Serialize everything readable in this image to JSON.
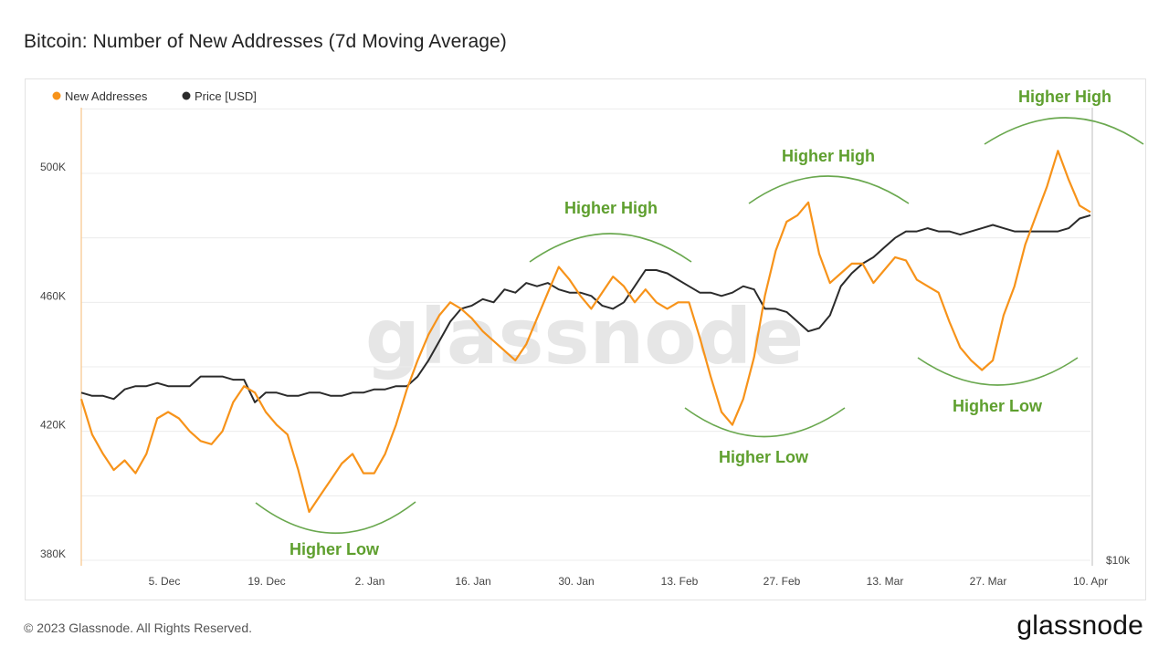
{
  "title": "Bitcoin: Number of New Addresses (7d Moving Average)",
  "footer": "© 2023 Glassnode. All Rights Reserved.",
  "brand": "glassnode",
  "watermark": "glassnode",
  "colors": {
    "new_addresses": "#f7931a",
    "price": "#2b2b2b",
    "annotation": "#5e9f2e",
    "grid": "#ececec"
  },
  "chart_data": {
    "type": "line",
    "title": "Bitcoin: Number of New Addresses (7d Moving Average)",
    "legend": [
      "New Addresses",
      "Price [USD]"
    ],
    "legend_placement": "top-left",
    "x_ticks": [
      "5. Dec",
      "19. Dec",
      "2. Jan",
      "16. Jan",
      "30. Jan",
      "13. Feb",
      "27. Feb",
      "13. Mar",
      "27. Mar",
      "10. Apr"
    ],
    "y_ticks": [
      "380K",
      "420K",
      "460K",
      "500K"
    ],
    "y2_ticks": [
      "$10k"
    ],
    "ylim": [
      380000,
      510000
    ],
    "grid": true,
    "series": [
      {
        "name": "New Addresses",
        "color": "#f7931a",
        "values": [
          430000,
          419000,
          413000,
          408000,
          411000,
          407000,
          413000,
          424000,
          426000,
          424000,
          420000,
          417000,
          416000,
          420000,
          429000,
          434000,
          432000,
          426000,
          422000,
          419000,
          408000,
          395000,
          400000,
          405000,
          410000,
          413000,
          407000,
          407000,
          413000,
          422000,
          433000,
          442000,
          450000,
          456000,
          460000,
          458000,
          455000,
          451000,
          448000,
          445000,
          442000,
          447000,
          455000,
          463000,
          471000,
          467000,
          462000,
          458000,
          463000,
          468000,
          465000,
          460000,
          464000,
          460000,
          458000,
          460000,
          460000,
          449000,
          437000,
          426000,
          422000,
          430000,
          443000,
          462000,
          476000,
          485000,
          487000,
          491000,
          475000,
          466000,
          469000,
          472000,
          472000,
          466000,
          470000,
          474000,
          473000,
          467000,
          465000,
          463000,
          454000,
          446000,
          442000,
          439000,
          442000,
          456000,
          465000,
          478000,
          487000,
          496000,
          507000,
          498000,
          490000,
          488000
        ],
        "peaks_note": ""
      },
      {
        "name": "Price [USD]",
        "color": "#2b2b2b",
        "values": [
          432000,
          431000,
          431000,
          430000,
          433000,
          434000,
          434000,
          435000,
          434000,
          434000,
          434000,
          437000,
          437000,
          437000,
          436000,
          436000,
          429000,
          432000,
          432000,
          431000,
          431000,
          432000,
          432000,
          431000,
          431000,
          432000,
          432000,
          433000,
          433000,
          434000,
          434000,
          437000,
          442000,
          448000,
          454000,
          458000,
          459000,
          461000,
          460000,
          464000,
          463000,
          466000,
          465000,
          466000,
          464000,
          463000,
          463000,
          462000,
          459000,
          458000,
          460000,
          465000,
          470000,
          470000,
          469000,
          467000,
          465000,
          463000,
          463000,
          462000,
          463000,
          465000,
          464000,
          458000,
          458000,
          457000,
          454000,
          451000,
          452000,
          456000,
          465000,
          469000,
          472000,
          474000,
          477000,
          480000,
          482000,
          482000,
          483000,
          482000,
          482000,
          481000,
          482000,
          483000,
          484000,
          483000,
          482000,
          482000,
          482000,
          482000,
          482000,
          483000,
          486000,
          487000
        ]
      }
    ],
    "annotations": [
      "Higher Low",
      "Higher High",
      "Higher Low",
      "Higher High",
      "Higher Low",
      "Higher High"
    ]
  }
}
